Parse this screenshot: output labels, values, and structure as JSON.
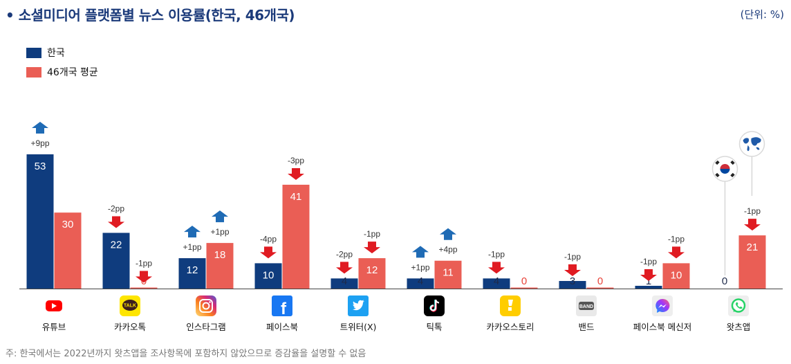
{
  "header": {
    "title": "• 소셜미디어 플랫폼별 뉴스 이용률(한국, 46개국)",
    "unit": "(단위: %)"
  },
  "footnote": "주: 한국에서는 2022년까지 왓츠앱을 조사항목에 포함하지 않았으므로 증감율을 설명할 수 없음",
  "colors": {
    "korea": "#0f3c7e",
    "avg46": "#ea5e55",
    "up": "#1f6bb5",
    "down": "#e01b22"
  },
  "chart_data": {
    "type": "bar",
    "title": "소셜미디어 플랫폼별 뉴스 이용률(한국, 46개국)",
    "unit": "(단위: %)",
    "legend_position": "top-left",
    "grid": false,
    "ylim": [
      0,
      60
    ],
    "categories": [
      "유튜브",
      "카카오톡",
      "인스타그램",
      "페이스북",
      "트위터(X)",
      "틱톡",
      "카카오스토리",
      "밴드",
      "페이스북 메신저",
      "왓츠앱"
    ],
    "category_icons": [
      "youtube-icon",
      "kakaotalk-icon",
      "instagram-icon",
      "facebook-icon",
      "twitter-icon",
      "tiktok-icon",
      "kakaostory-icon",
      "band-icon",
      "messenger-icon",
      "whatsapp-icon"
    ],
    "series": [
      {
        "name": "한국",
        "values": [
          53,
          22,
          12,
          10,
          4,
          4,
          4,
          3,
          1,
          0
        ],
        "changes": [
          "+9pp",
          "-2pp",
          "+1pp",
          "-4pp",
          "-2pp",
          "+1pp",
          "-1pp",
          "-1pp",
          "-1pp",
          ""
        ]
      },
      {
        "name": "46개국 평균",
        "values": [
          30,
          0,
          18,
          41,
          12,
          11,
          0,
          0,
          10,
          21
        ],
        "changes": [
          "",
          "-1pp",
          "+1pp",
          "-3pp",
          "-1pp",
          "+4pp",
          "",
          "",
          "-1pp",
          "-1pp"
        ]
      }
    ]
  }
}
